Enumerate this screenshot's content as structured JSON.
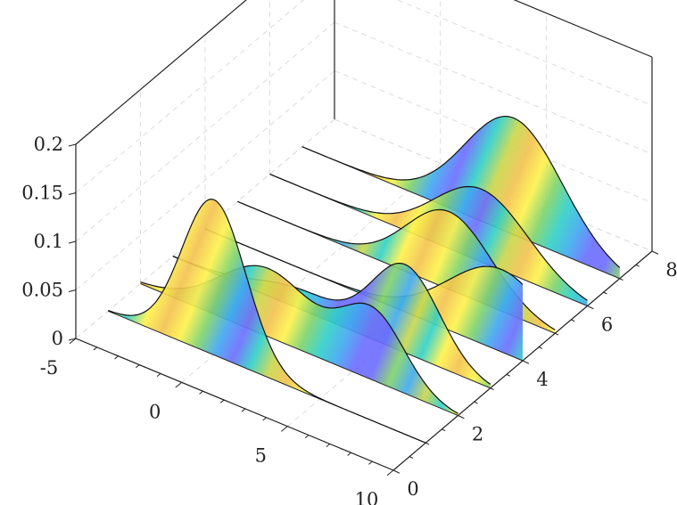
{
  "chart_data": {
    "type": "ridgeline-3d",
    "title": "",
    "xlabel": "",
    "ylabel": "",
    "zlabel": "",
    "xlim": [
      -5,
      10
    ],
    "ylim": [
      0,
      8
    ],
    "zlim": [
      0,
      0.2
    ],
    "x_ticks": [
      "-5",
      "0",
      "5",
      "10"
    ],
    "y_ticks": [
      "0",
      "2",
      "4",
      "6",
      "8"
    ],
    "z_ticks": [
      "0",
      "0.05",
      "0.1",
      "0.15",
      "0.2"
    ],
    "grid": true,
    "series": [
      {
        "y": 1,
        "x_range": [
          -5,
          10
        ],
        "peaks": [
          {
            "mu": 0.0,
            "sigma": 1.5,
            "amp": 0.16
          }
        ]
      },
      {
        "y": 2,
        "x_range": [
          -5,
          10
        ],
        "peaks": [
          {
            "mu": 1.0,
            "sigma": 2.2,
            "amp": 0.07
          },
          {
            "mu": 6.0,
            "sigma": 1.5,
            "amp": 0.07
          }
        ]
      },
      {
        "y": 3,
        "x_range": [
          -5,
          10
        ],
        "peaks": [
          {
            "mu": 6.0,
            "sigma": 1.6,
            "amp": 0.09
          },
          {
            "mu": 1.0,
            "sigma": 2.0,
            "amp": 0.02
          }
        ]
      },
      {
        "y": 4,
        "x_range": [
          -5,
          10
        ],
        "peaks": [
          {
            "mu": 9.0,
            "sigma": 2.5,
            "amp": 0.085
          }
        ]
      },
      {
        "y": 5,
        "x_range": [
          -5,
          10
        ],
        "peaks": [
          {
            "mu": 5.0,
            "sigma": 2.0,
            "amp": 0.08
          }
        ]
      },
      {
        "y": 6,
        "x_range": [
          -5,
          10
        ],
        "peaks": [
          {
            "mu": 5.0,
            "sigma": 2.2,
            "amp": 0.075
          }
        ]
      },
      {
        "y": 7,
        "x_range": [
          -5,
          10
        ],
        "peaks": [
          {
            "mu": 5.0,
            "sigma": 2.3,
            "amp": 0.12
          }
        ]
      }
    ],
    "colormap": [
      "#6b6bff",
      "#3fa8f0",
      "#2fd0c8",
      "#7fd36a",
      "#c9d64a",
      "#f2c14e",
      "#fff24a"
    ]
  }
}
